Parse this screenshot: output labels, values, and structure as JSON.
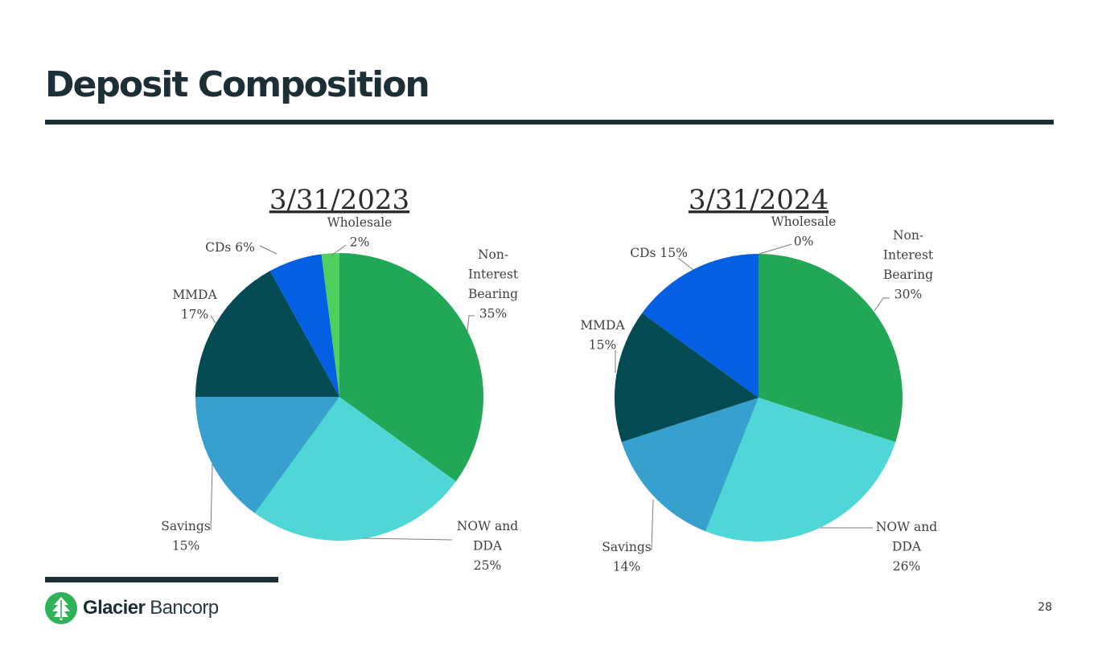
{
  "slide": {
    "title": "Deposit Composition",
    "page_number": "28"
  },
  "logo": {
    "brand_bold": "Glacier",
    "brand_light": "Bancorp",
    "mark_color": "#2fb35a",
    "text_color": "#1c2f36"
  },
  "colors": {
    "non_interest_bearing": "#22a757",
    "now_and_dda": "#4fd6d6",
    "savings": "#38a0cf",
    "mmda": "#044a52",
    "cds": "#055fe2",
    "wholesale": "#4fcf5f"
  },
  "chart_data": [
    {
      "type": "pie",
      "title": "3/31/2023",
      "slices": [
        {
          "key": "non_interest_bearing",
          "label_lines": [
            "Non-",
            "Interest",
            "Bearing",
            "35%"
          ],
          "value": 35
        },
        {
          "key": "now_and_dda",
          "label_lines": [
            "NOW and",
            "DDA",
            "25%"
          ],
          "value": 25
        },
        {
          "key": "savings",
          "label_lines": [
            "Savings",
            "15%"
          ],
          "value": 15
        },
        {
          "key": "mmda",
          "label_lines": [
            "MMDA",
            "17%"
          ],
          "value": 17
        },
        {
          "key": "cds",
          "label_lines": [
            "CDs 6%"
          ],
          "value": 6
        },
        {
          "key": "wholesale",
          "label_lines": [
            "Wholesale",
            "2%"
          ],
          "value": 2
        }
      ]
    },
    {
      "type": "pie",
      "title": "3/31/2024",
      "slices": [
        {
          "key": "non_interest_bearing",
          "label_lines": [
            "Non-",
            "Interest",
            "Bearing",
            "30%"
          ],
          "value": 30
        },
        {
          "key": "now_and_dda",
          "label_lines": [
            "NOW and",
            "DDA",
            "26%"
          ],
          "value": 26
        },
        {
          "key": "savings",
          "label_lines": [
            "Savings",
            "14%"
          ],
          "value": 14
        },
        {
          "key": "mmda",
          "label_lines": [
            "MMDA",
            "15%"
          ],
          "value": 15
        },
        {
          "key": "cds",
          "label_lines": [
            "CDs 15%"
          ],
          "value": 15
        },
        {
          "key": "wholesale",
          "label_lines": [
            "Wholesale",
            "0%"
          ],
          "value": 0
        }
      ]
    }
  ]
}
